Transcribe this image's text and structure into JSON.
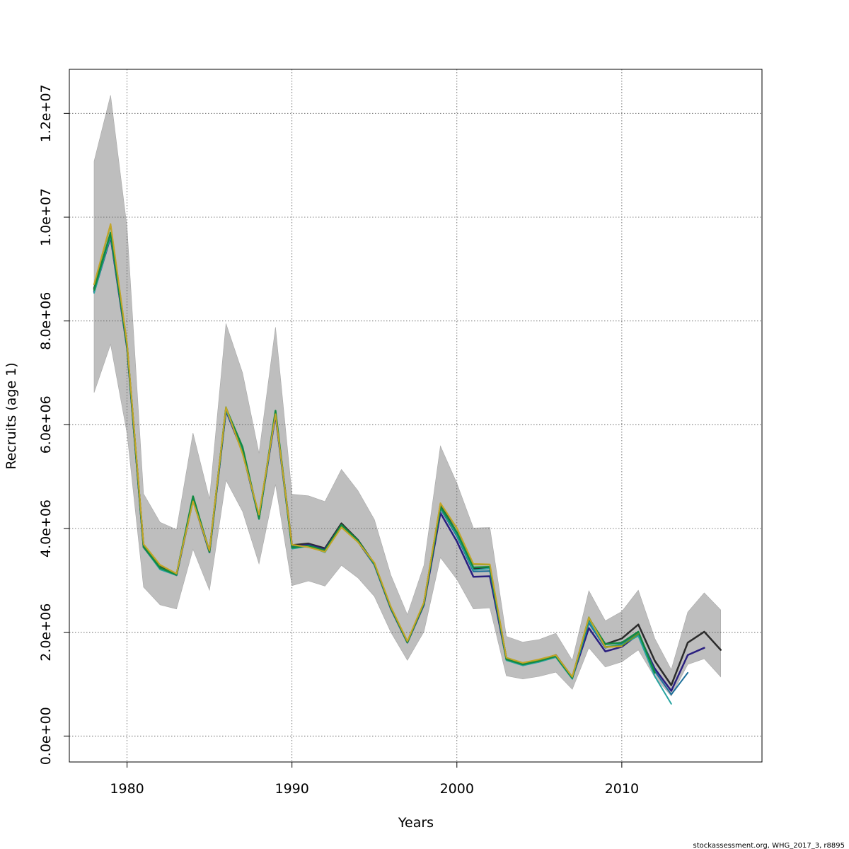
{
  "chart_data": {
    "type": "line",
    "xlabel": "Years",
    "ylabel": "Recruits (age 1)",
    "xlim": [
      1976.5,
      2018.5
    ],
    "ylim": [
      -500000,
      12850000
    ],
    "x_ticks": [
      {
        "value": 1980,
        "label": "1980"
      },
      {
        "value": 1990,
        "label": "1990"
      },
      {
        "value": 2000,
        "label": "2000"
      },
      {
        "value": 2010,
        "label": "2010"
      }
    ],
    "y_ticks": [
      {
        "value": 0,
        "label": "0.0e+00"
      },
      {
        "value": 2000000,
        "label": "2.0e+06"
      },
      {
        "value": 4000000,
        "label": "4.0e+06"
      },
      {
        "value": 6000000,
        "label": "6.0e+06"
      },
      {
        "value": 8000000,
        "label": "8.0e+06"
      },
      {
        "value": 10000000,
        "label": "1.0e+07"
      },
      {
        "value": 12000000,
        "label": "1.2e+07"
      }
    ],
    "grid": true,
    "band": {
      "color": "#bebebe",
      "x": [
        1978,
        1979,
        1980,
        1981,
        1982,
        1983,
        1984,
        1985,
        1986,
        1987,
        1988,
        1989,
        1990,
        1991,
        1992,
        1993,
        1994,
        1995,
        1996,
        1997,
        1998,
        1999,
        2000,
        2001,
        2002,
        2003,
        2004,
        2005,
        2006,
        2007,
        2008,
        2009,
        2010,
        2011,
        2012,
        2013,
        2014,
        2015,
        2016
      ],
      "upper": [
        11080000,
        12350000,
        9800000,
        4670000,
        4120000,
        3980000,
        5840000,
        4570000,
        7950000,
        7000000,
        5450000,
        7880000,
        4660000,
        4630000,
        4520000,
        5140000,
        4730000,
        4170000,
        3100000,
        2340000,
        3290000,
        5590000,
        4870000,
        4010000,
        4020000,
        1920000,
        1810000,
        1860000,
        1980000,
        1460000,
        2800000,
        2220000,
        2400000,
        2810000,
        1880000,
        1280000,
        2390000,
        2760000,
        2430000
      ],
      "lower": [
        6620000,
        7550000,
        5830000,
        2870000,
        2530000,
        2450000,
        3600000,
        2810000,
        4930000,
        4330000,
        3320000,
        4850000,
        2900000,
        2990000,
        2890000,
        3290000,
        3050000,
        2690000,
        2000000,
        1460000,
        2010000,
        3440000,
        3020000,
        2450000,
        2470000,
        1160000,
        1100000,
        1150000,
        1230000,
        900000,
        1700000,
        1330000,
        1430000,
        1660000,
        1130000,
        770000,
        1380000,
        1490000,
        1140000
      ]
    },
    "series": [
      {
        "color": "#2b2b2b",
        "width": 2.5,
        "x": [
          1978,
          1979,
          1980,
          1981,
          1982,
          1983,
          1984,
          1985,
          1986,
          1987,
          1988,
          1989,
          1990,
          1991,
          1992,
          1993,
          1994,
          1995,
          1996,
          1997,
          1998,
          1999,
          2000,
          2001,
          2002,
          2003,
          2004,
          2005,
          2006,
          2007,
          2008,
          2009,
          2010,
          2011,
          2012,
          2013,
          2014,
          2015,
          2016
        ],
        "y": [
          8630000,
          9680000,
          7520000,
          3660000,
          3260000,
          3110000,
          4580000,
          3560000,
          6300000,
          5500000,
          4220000,
          6210000,
          3680000,
          3710000,
          3620000,
          4100000,
          3780000,
          3320000,
          2470000,
          1810000,
          2560000,
          4450000,
          3920000,
          3230000,
          3240000,
          1500000,
          1400000,
          1460000,
          1560000,
          1130000,
          2250000,
          1770000,
          1880000,
          2150000,
          1450000,
          980000,
          1800000,
          2010000,
          1660000
        ]
      },
      {
        "color": "#2a1f80",
        "width": 2.5,
        "x": [
          1978,
          1979,
          1980,
          1981,
          1982,
          1983,
          1984,
          1985,
          1986,
          1987,
          1988,
          1989,
          1990,
          1991,
          1992,
          1993,
          1994,
          1995,
          1996,
          1997,
          1998,
          1999,
          2000,
          2001,
          2002,
          2003,
          2004,
          2005,
          2006,
          2007,
          2008,
          2009,
          2010,
          2011,
          2012,
          2013,
          2014,
          2015
        ],
        "y": [
          8560000,
          9620000,
          7480000,
          3640000,
          3230000,
          3100000,
          4550000,
          3540000,
          6270000,
          5480000,
          4200000,
          6180000,
          3650000,
          3690000,
          3600000,
          4070000,
          3750000,
          3300000,
          2450000,
          1800000,
          2530000,
          4300000,
          3750000,
          3070000,
          3080000,
          1480000,
          1380000,
          1440000,
          1540000,
          1120000,
          2080000,
          1630000,
          1720000,
          1960000,
          1300000,
          870000,
          1560000,
          1700000
        ]
      },
      {
        "color": "#1d6f9a",
        "width": 2,
        "x": [
          1978,
          1979,
          1980,
          1981,
          1982,
          1983,
          1984,
          1985,
          1986,
          1987,
          1988,
          1989,
          1990,
          1991,
          1992,
          1993,
          1994,
          1995,
          1996,
          1997,
          1998,
          1999,
          2000,
          2001,
          2002,
          2003,
          2004,
          2005,
          2006,
          2007,
          2008,
          2009,
          2010,
          2011,
          2012,
          2013,
          2014
        ],
        "y": [
          8580000,
          9650000,
          7500000,
          3650000,
          3220000,
          3100000,
          4570000,
          3550000,
          6280000,
          5490000,
          4200000,
          6200000,
          3640000,
          3670000,
          3580000,
          4060000,
          3750000,
          3300000,
          2450000,
          1800000,
          2540000,
          4380000,
          3850000,
          3170000,
          3180000,
          1470000,
          1370000,
          1430000,
          1530000,
          1110000,
          2180000,
          1700000,
          1780000,
          1990000,
          1250000,
          800000,
          1220000
        ]
      },
      {
        "color": "#27a3a0",
        "width": 2,
        "x": [
          1978,
          1979,
          1980,
          1981,
          1982,
          1983,
          1984,
          1985,
          1986,
          1987,
          1988,
          1989,
          1990,
          1991,
          1992,
          1993,
          1994,
          1995,
          1996,
          1997,
          1998,
          1999,
          2000,
          2001,
          2002,
          2003,
          2004,
          2005,
          2006,
          2007,
          2008,
          2009,
          2010,
          2011,
          2012,
          2013
        ],
        "y": [
          8540000,
          9640000,
          7490000,
          3640000,
          3210000,
          3100000,
          4560000,
          3540000,
          6290000,
          5500000,
          4180000,
          6210000,
          3610000,
          3660000,
          3540000,
          4050000,
          3760000,
          3300000,
          2460000,
          1800000,
          2550000,
          4400000,
          3880000,
          3200000,
          3230000,
          1460000,
          1360000,
          1430000,
          1520000,
          1100000,
          2220000,
          1720000,
          1760000,
          1930000,
          1150000,
          620000
        ]
      },
      {
        "color": "#128a42",
        "width": 2.5,
        "x": [
          1978,
          1979,
          1980,
          1981,
          1982,
          1983,
          1984,
          1985,
          1986,
          1987,
          1988,
          1989,
          1990,
          1991,
          1992,
          1993,
          1994,
          1995,
          1996,
          1997,
          1998,
          1999,
          2000,
          2001,
          2002,
          2003,
          2004,
          2005,
          2006,
          2007,
          2008,
          2009,
          2010,
          2011,
          2012
        ],
        "y": [
          8600000,
          9700000,
          7510000,
          3650000,
          3240000,
          3110000,
          4620000,
          3550000,
          6320000,
          5570000,
          4190000,
          6270000,
          3630000,
          3670000,
          3580000,
          4070000,
          3770000,
          3320000,
          2470000,
          1810000,
          2560000,
          4420000,
          3920000,
          3250000,
          3260000,
          1480000,
          1380000,
          1450000,
          1540000,
          1120000,
          2270000,
          1770000,
          1800000,
          2010000,
          1220000
        ]
      },
      {
        "color": "#6b9a1f",
        "width": 2,
        "x": [
          1978,
          1979,
          1980,
          1981,
          1982,
          1983,
          1984,
          1985,
          1986,
          1987,
          1988,
          1989,
          1990,
          1991,
          1992,
          1993,
          1994,
          1995,
          1996,
          1997,
          1998,
          1999,
          2000,
          2001,
          2002,
          2003,
          2004,
          2005,
          2006,
          2007,
          2008,
          2009,
          2010,
          2011
        ],
        "y": [
          8700000,
          9850000,
          7560000,
          3690000,
          3290000,
          3130000,
          4530000,
          3570000,
          6340000,
          5450000,
          4260000,
          6210000,
          3680000,
          3640000,
          3560000,
          4030000,
          3740000,
          3330000,
          2480000,
          1820000,
          2570000,
          4480000,
          4000000,
          3310000,
          3300000,
          1510000,
          1410000,
          1470000,
          1560000,
          1140000,
          2290000,
          1720000,
          1740000,
          1970000
        ]
      },
      {
        "color": "#c4a528",
        "width": 2,
        "x": [
          1978,
          1979,
          1980,
          1981,
          1982,
          1983,
          1984,
          1985,
          1986,
          1987,
          1988,
          1989,
          1990,
          1991,
          1992,
          1993,
          1994,
          1995,
          1996,
          1997,
          1998,
          1999,
          2000,
          2001,
          2002,
          2003,
          2004,
          2005,
          2006,
          2007,
          2008,
          2009,
          2010
        ],
        "y": [
          8710000,
          9870000,
          7570000,
          3700000,
          3300000,
          3130000,
          4520000,
          3580000,
          6330000,
          5440000,
          4270000,
          6200000,
          3690000,
          3640000,
          3550000,
          4020000,
          3740000,
          3340000,
          2490000,
          1830000,
          2580000,
          4490000,
          4010000,
          3320000,
          3310000,
          1510000,
          1410000,
          1480000,
          1560000,
          1140000,
          2280000,
          1710000,
          1730000
        ]
      }
    ]
  },
  "footer": {
    "text": "stockassessment.org, WHG_2017_3, r8895"
  }
}
